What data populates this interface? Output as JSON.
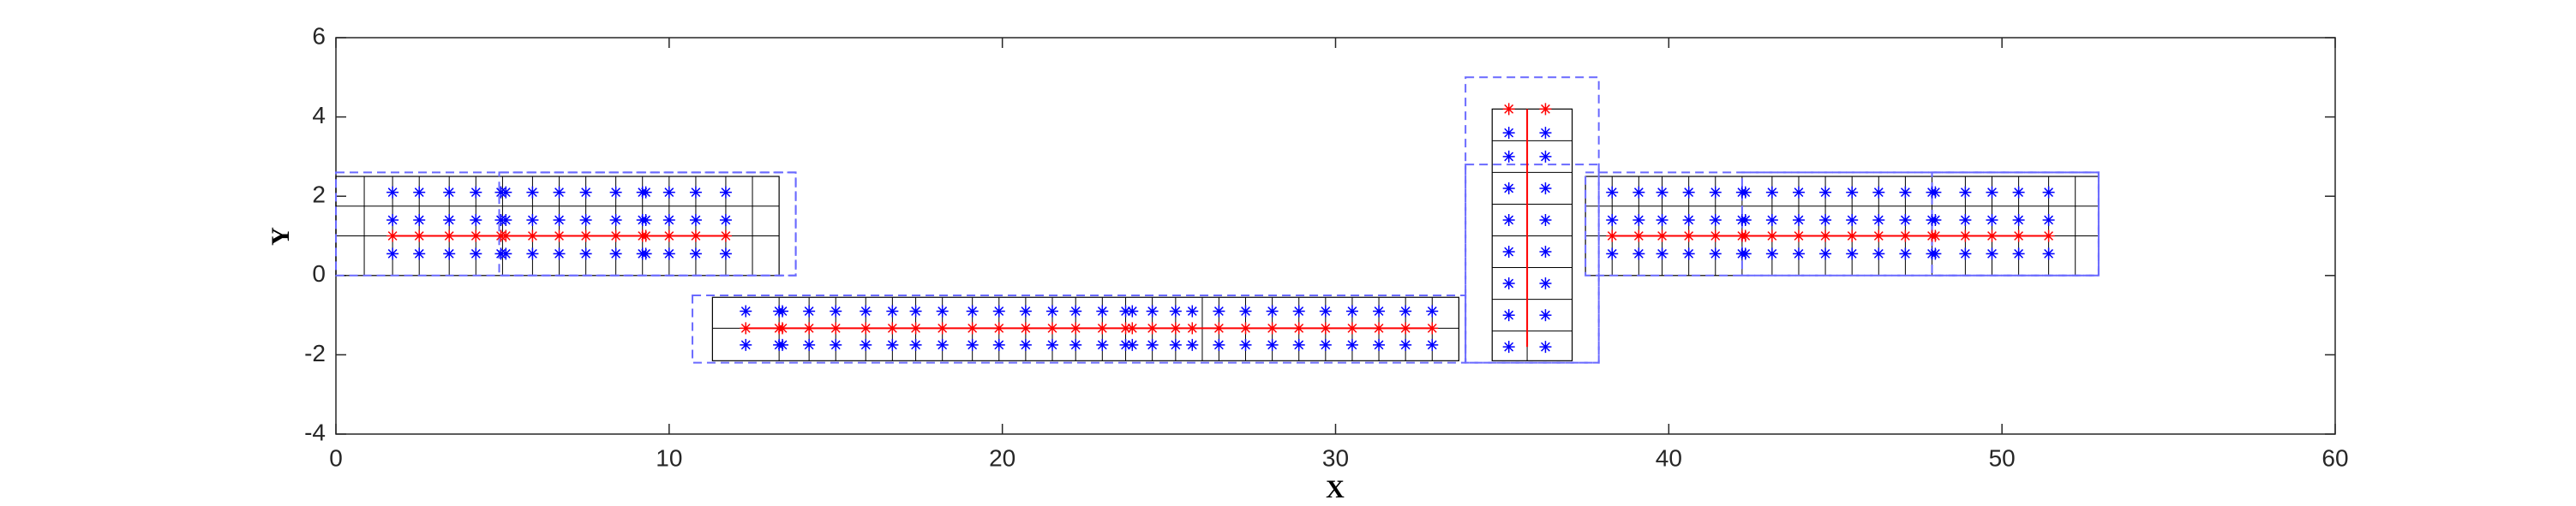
{
  "chart_data": {
    "type": "scatter",
    "xlabel": "X",
    "ylabel": "Y",
    "xlim": [
      0,
      60
    ],
    "ylim": [
      -4,
      6
    ],
    "xticks": [
      0,
      10,
      20,
      30,
      40,
      50,
      60
    ],
    "yticks": [
      -4,
      -2,
      0,
      2,
      4,
      6
    ],
    "grids": [
      {
        "color": "#000000",
        "x0": 0,
        "x1": 13.3,
        "y0": 0,
        "y1": 2.5,
        "xs": [
          0.85,
          1.7,
          2.5,
          3.4,
          4.2,
          5.0,
          5.9,
          6.7,
          7.5,
          8.4,
          9.2,
          10.0,
          10.8,
          11.7,
          12.5
        ],
        "ys": [
          1.0,
          1.75
        ]
      },
      {
        "color": "#000000",
        "x0": 11.3,
        "x1": 33.7,
        "y0": -2.15,
        "y1": -0.55,
        "xs": [
          13.3,
          14.2,
          15.0,
          15.9,
          16.7,
          17.4,
          18.2,
          19.1,
          19.9,
          20.7,
          21.5,
          22.2,
          23.0,
          23.7,
          24.5,
          25.2,
          26.0,
          26.5,
          27.3,
          28.1,
          28.9,
          29.7,
          30.5,
          31.3,
          32.1,
          32.9
        ],
        "ys": [
          -1.33
        ]
      },
      {
        "color": "#000000",
        "x0": 34.7,
        "x1": 37.1,
        "y0": -2.15,
        "y1": 4.2,
        "xs": [
          35.75
        ],
        "ys": [
          -1.4,
          -0.6,
          0.2,
          1.0,
          1.8,
          2.6,
          3.4
        ]
      },
      {
        "color": "#000000",
        "x0": 37.5,
        "x1": 52.9,
        "y0": 0,
        "y1": 2.5,
        "xs": [
          38.3,
          39.1,
          39.8,
          40.6,
          41.4,
          42.2,
          43.1,
          43.9,
          44.7,
          45.5,
          46.3,
          47.1,
          47.9,
          48.9,
          49.7,
          50.5,
          51.4,
          52.2
        ],
        "ys": [
          1.0,
          1.75
        ]
      }
    ],
    "boxes": [
      {
        "color": "#6a6aff",
        "x0": 0,
        "x1": 13.8,
        "y0": 0,
        "y1": 2.6
      },
      {
        "color": "#6a6aff",
        "x0": 4.9,
        "x1": 13.8,
        "y0": 0,
        "y1": 2.6
      },
      {
        "color": "#6a6aff",
        "x0": 10.7,
        "x1": 33.9,
        "y0": -2.2,
        "y1": -0.5
      },
      {
        "color": "#6a6aff",
        "x0": 33.9,
        "x1": 37.9,
        "y0": -2.2,
        "y1": 5.0
      },
      {
        "color": "#6a6aff",
        "x0": 33.9,
        "x1": 37.9,
        "y0": -2.2,
        "y1": 2.8
      },
      {
        "color": "#6a6aff",
        "x0": 37.5,
        "x1": 52.9,
        "y0": 0,
        "y1": 2.6
      },
      {
        "color": "#6a6aff",
        "x0": 42.2,
        "x1": 52.9,
        "y0": 0,
        "y1": 2.6
      },
      {
        "color": "#6a6aff",
        "x0": 47.9,
        "x1": 52.9,
        "y0": 0,
        "y1": 2.6
      }
    ],
    "lines": [
      {
        "color": "#ff0000",
        "x": [
          1.7,
          11.7
        ],
        "y": [
          1.0,
          1.0
        ]
      },
      {
        "color": "#ff0000",
        "x": [
          12.3,
          32.9
        ],
        "y": [
          -1.33,
          -1.33
        ]
      },
      {
        "color": "#ff0000",
        "x": [
          35.75,
          35.75
        ],
        "y": [
          -1.8,
          4.2
        ]
      },
      {
        "color": "#ff0000",
        "x": [
          38.3,
          51.4
        ],
        "y": [
          1.0,
          1.0
        ]
      }
    ],
    "series": [
      {
        "color": "#0000ff",
        "x": [
          1.7,
          2.5,
          3.4,
          4.2,
          4.95,
          5.1,
          5.9,
          6.7,
          7.5,
          8.4,
          9.2,
          9.3,
          10.0,
          10.8,
          11.7
        ],
        "y": [
          2.1,
          2.1,
          2.1,
          2.1,
          2.1,
          2.1,
          2.1,
          2.1,
          2.1,
          2.1,
          2.1,
          2.1,
          2.1,
          2.1,
          2.1
        ]
      },
      {
        "color": "#0000ff",
        "x": [
          1.7,
          2.5,
          3.4,
          4.2,
          4.95,
          5.1,
          5.9,
          6.7,
          7.5,
          8.4,
          9.2,
          9.3,
          10.0,
          10.8,
          11.7
        ],
        "y": [
          1.4,
          1.4,
          1.4,
          1.4,
          1.4,
          1.4,
          1.4,
          1.4,
          1.4,
          1.4,
          1.4,
          1.4,
          1.4,
          1.4,
          1.4
        ]
      },
      {
        "color": "#0000ff",
        "x": [
          1.7,
          2.5,
          3.4,
          4.2,
          4.95,
          5.1,
          5.9,
          6.7,
          7.5,
          8.4,
          9.2,
          9.3,
          10.0,
          10.8,
          11.7
        ],
        "y": [
          0.55,
          0.55,
          0.55,
          0.55,
          0.55,
          0.55,
          0.55,
          0.55,
          0.55,
          0.55,
          0.55,
          0.55,
          0.55,
          0.55,
          0.55
        ]
      },
      {
        "color": "#ff0000",
        "x": [
          1.7,
          2.5,
          3.4,
          4.2,
          4.95,
          5.1,
          5.9,
          6.7,
          7.5,
          8.4,
          9.2,
          9.3,
          10.0,
          10.8,
          11.7
        ],
        "y": [
          1.0,
          1.0,
          1.0,
          1.0,
          1.0,
          1.0,
          1.0,
          1.0,
          1.0,
          1.0,
          1.0,
          1.0,
          1.0,
          1.0,
          1.0
        ]
      },
      {
        "color": "#0000ff",
        "x": [
          12.3,
          13.3,
          13.4,
          14.2,
          15.0,
          15.9,
          16.7,
          17.4,
          18.2,
          19.1,
          19.9,
          20.7,
          21.5,
          22.2,
          23.0,
          23.7,
          23.9,
          24.5,
          25.2,
          25.7,
          26.5,
          27.3,
          28.1,
          28.9,
          29.7,
          30.5,
          31.3,
          32.1,
          32.9
        ],
        "y": [
          -0.9,
          -0.9,
          -0.9,
          -0.9,
          -0.9,
          -0.9,
          -0.9,
          -0.9,
          -0.9,
          -0.9,
          -0.9,
          -0.9,
          -0.9,
          -0.9,
          -0.9,
          -0.9,
          -0.9,
          -0.9,
          -0.9,
          -0.9,
          -0.9,
          -0.9,
          -0.9,
          -0.9,
          -0.9,
          -0.9,
          -0.9,
          -0.9,
          -0.9
        ]
      },
      {
        "color": "#0000ff",
        "x": [
          12.3,
          13.3,
          13.4,
          14.2,
          15.0,
          15.9,
          16.7,
          17.4,
          18.2,
          19.1,
          19.9,
          20.7,
          21.5,
          22.2,
          23.0,
          23.7,
          23.9,
          24.5,
          25.2,
          25.7,
          26.5,
          27.3,
          28.1,
          28.9,
          29.7,
          30.5,
          31.3,
          32.1,
          32.9
        ],
        "y": [
          -1.75,
          -1.75,
          -1.75,
          -1.75,
          -1.75,
          -1.75,
          -1.75,
          -1.75,
          -1.75,
          -1.75,
          -1.75,
          -1.75,
          -1.75,
          -1.75,
          -1.75,
          -1.75,
          -1.75,
          -1.75,
          -1.75,
          -1.75,
          -1.75,
          -1.75,
          -1.75,
          -1.75,
          -1.75,
          -1.75,
          -1.75,
          -1.75,
          -1.75
        ]
      },
      {
        "color": "#ff0000",
        "x": [
          12.3,
          13.3,
          13.4,
          14.2,
          15.0,
          15.9,
          16.7,
          17.4,
          18.2,
          19.1,
          19.9,
          20.7,
          21.5,
          22.2,
          23.0,
          23.7,
          23.9,
          24.5,
          25.2,
          25.7,
          26.5,
          27.3,
          28.1,
          28.9,
          29.7,
          30.5,
          31.3,
          32.1,
          32.9
        ],
        "y": [
          -1.33,
          -1.33,
          -1.33,
          -1.33,
          -1.33,
          -1.33,
          -1.33,
          -1.33,
          -1.33,
          -1.33,
          -1.33,
          -1.33,
          -1.33,
          -1.33,
          -1.33,
          -1.33,
          -1.33,
          -1.33,
          -1.33,
          -1.33,
          -1.33,
          -1.33,
          -1.33,
          -1.33,
          -1.33,
          -1.33,
          -1.33,
          -1.33,
          -1.33
        ]
      },
      {
        "color": "#0000ff",
        "x": [
          35.2,
          36.3,
          35.2,
          36.3,
          35.2,
          36.3,
          35.2,
          36.3,
          35.2,
          36.3,
          35.2,
          36.3,
          35.2,
          36.3,
          35.2,
          36.3
        ],
        "y": [
          -1.8,
          -1.8,
          -1.0,
          -1.0,
          -0.2,
          -0.2,
          0.6,
          0.6,
          1.4,
          1.4,
          2.2,
          2.2,
          3.0,
          3.0,
          3.6,
          3.6
        ]
      },
      {
        "color": "#ff0000",
        "x": [
          35.2,
          36.3
        ],
        "y": [
          4.2,
          4.2
        ]
      },
      {
        "color": "#0000ff",
        "x": [
          38.3,
          39.1,
          39.8,
          40.6,
          41.4,
          42.2,
          42.3,
          43.1,
          43.9,
          44.7,
          45.5,
          46.3,
          47.1,
          47.9,
          48.0,
          48.9,
          49.7,
          50.5,
          51.4
        ],
        "y": [
          2.1,
          2.1,
          2.1,
          2.1,
          2.1,
          2.1,
          2.1,
          2.1,
          2.1,
          2.1,
          2.1,
          2.1,
          2.1,
          2.1,
          2.1,
          2.1,
          2.1,
          2.1,
          2.1
        ]
      },
      {
        "color": "#0000ff",
        "x": [
          38.3,
          39.1,
          39.8,
          40.6,
          41.4,
          42.2,
          42.3,
          43.1,
          43.9,
          44.7,
          45.5,
          46.3,
          47.1,
          47.9,
          48.0,
          48.9,
          49.7,
          50.5,
          51.4
        ],
        "y": [
          1.4,
          1.4,
          1.4,
          1.4,
          1.4,
          1.4,
          1.4,
          1.4,
          1.4,
          1.4,
          1.4,
          1.4,
          1.4,
          1.4,
          1.4,
          1.4,
          1.4,
          1.4,
          1.4
        ]
      },
      {
        "color": "#0000ff",
        "x": [
          38.3,
          39.1,
          39.8,
          40.6,
          41.4,
          42.2,
          42.3,
          43.1,
          43.9,
          44.7,
          45.5,
          46.3,
          47.1,
          47.9,
          48.0,
          48.9,
          49.7,
          50.5,
          51.4
        ],
        "y": [
          0.55,
          0.55,
          0.55,
          0.55,
          0.55,
          0.55,
          0.55,
          0.55,
          0.55,
          0.55,
          0.55,
          0.55,
          0.55,
          0.55,
          0.55,
          0.55,
          0.55,
          0.55,
          0.55
        ]
      },
      {
        "color": "#ff0000",
        "x": [
          38.3,
          39.1,
          39.8,
          40.6,
          41.4,
          42.2,
          42.3,
          43.1,
          43.9,
          44.7,
          45.5,
          46.3,
          47.1,
          47.9,
          48.0,
          48.9,
          49.7,
          50.5,
          51.4
        ],
        "y": [
          1.0,
          1.0,
          1.0,
          1.0,
          1.0,
          1.0,
          1.0,
          1.0,
          1.0,
          1.0,
          1.0,
          1.0,
          1.0,
          1.0,
          1.0,
          1.0,
          1.0,
          1.0,
          1.0
        ]
      }
    ]
  }
}
